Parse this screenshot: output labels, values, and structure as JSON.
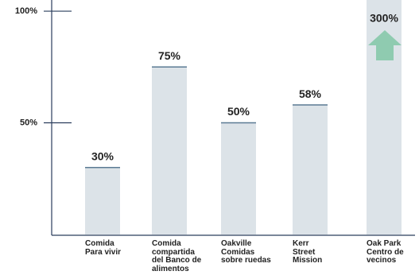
{
  "chart_data": {
    "type": "bar",
    "categories": [
      "Comida\nPara vivir",
      "Comida\ncompartida\ndel Banco de\nalimentos",
      "Oakville\nComidas\nsobre ruedas",
      "Kerr\nStreet\nMission",
      "Oak Park\nCentro de\nvecinos"
    ],
    "values": [
      30,
      75,
      50,
      58,
      300
    ],
    "value_labels": [
      "30%",
      "75%",
      "50%",
      "58%",
      "300%"
    ],
    "color": "#dce3e8",
    "ylim": [
      0,
      105
    ],
    "yticks": [
      {
        "value": 50,
        "label": "50%"
      },
      {
        "value": 100,
        "label": "100%"
      }
    ],
    "grid": false
  }
}
